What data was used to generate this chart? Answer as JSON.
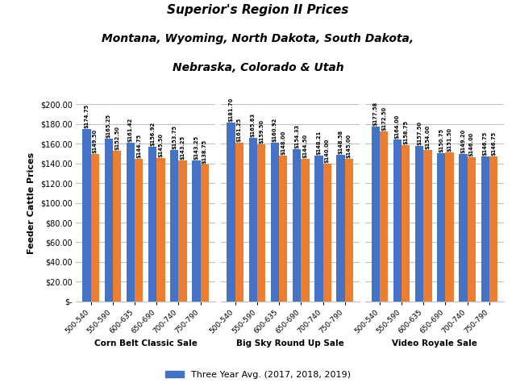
{
  "title_line1": "Superior's Region II Prices",
  "title_line2": "Montana, Wyoming, North Dakota, South Dakota,",
  "title_line3": "Nebraska, Colorado & Utah",
  "ylabel": "Feeder Cattle Prices",
  "categories": [
    "500-540",
    "550-590",
    "600-635",
    "650-690",
    "700-740",
    "750-790"
  ],
  "groups": [
    {
      "name": "Corn Belt Classic Sale",
      "blue": [
        174.75,
        165.25,
        161.42,
        156.92,
        153.75,
        143.25
      ],
      "orange": [
        149.5,
        152.5,
        144.75,
        145.5,
        143.25,
        138.75
      ]
    },
    {
      "name": "Big Sky Round Up Sale",
      "blue": [
        181.7,
        165.63,
        160.92,
        154.33,
        148.21,
        148.58
      ],
      "orange": [
        161.25,
        159.5,
        148.0,
        144.5,
        140.0,
        145.0
      ]
    },
    {
      "name": "Video Royale Sale",
      "blue": [
        177.58,
        164.0,
        157.5,
        150.75,
        149.2,
        146.75
      ],
      "orange": [
        172.5,
        158.75,
        154.0,
        151.5,
        146.0,
        146.75
      ]
    }
  ],
  "blue_color": "#4472C4",
  "orange_color": "#ED7D31",
  "background_color": "#FFFFFF",
  "legend_label_blue": "Three Year Avg. (2017, 2018, 2019)",
  "ylim_max": 200,
  "ytick_step": 20,
  "bar_label_fontsize": 4.8,
  "xlabel_fontsize": 7.5,
  "ylabel_fontsize": 8,
  "xtick_fontsize": 6.5,
  "ytick_fontsize": 7,
  "legend_fontsize": 8
}
